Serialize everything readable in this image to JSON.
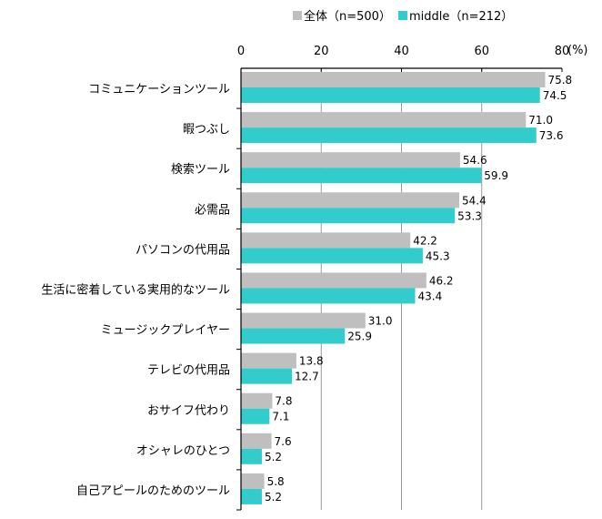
{
  "chart_data": {
    "type": "bar",
    "orientation": "horizontal",
    "title": "",
    "xlabel": "",
    "unit_label": "(%)",
    "xlim": [
      0,
      80
    ],
    "xticks": [
      0,
      20,
      40,
      60,
      80
    ],
    "grid": true,
    "legend_position": "top",
    "categories": [
      "コミュニケーションツール",
      "暇つぶし",
      "検索ツール",
      "必需品",
      "パソコンの代用品",
      "生活に密着している実用的なツール",
      "ミュージックプレイヤー",
      "テレビの代用品",
      "おサイフ代わり",
      "オシャレのひとつ",
      "自己アピールのためのツール"
    ],
    "series": [
      {
        "name": "全体（n=500）",
        "color": "#bfbfbf",
        "values": [
          75.8,
          71.0,
          54.6,
          54.4,
          42.2,
          46.2,
          31.0,
          13.8,
          7.8,
          7.6,
          5.8
        ]
      },
      {
        "name": "middle（n=212）",
        "color": "#33cccc",
        "values": [
          74.5,
          73.6,
          59.9,
          53.3,
          45.3,
          43.4,
          25.9,
          12.7,
          7.1,
          5.2,
          5.2
        ]
      }
    ]
  }
}
